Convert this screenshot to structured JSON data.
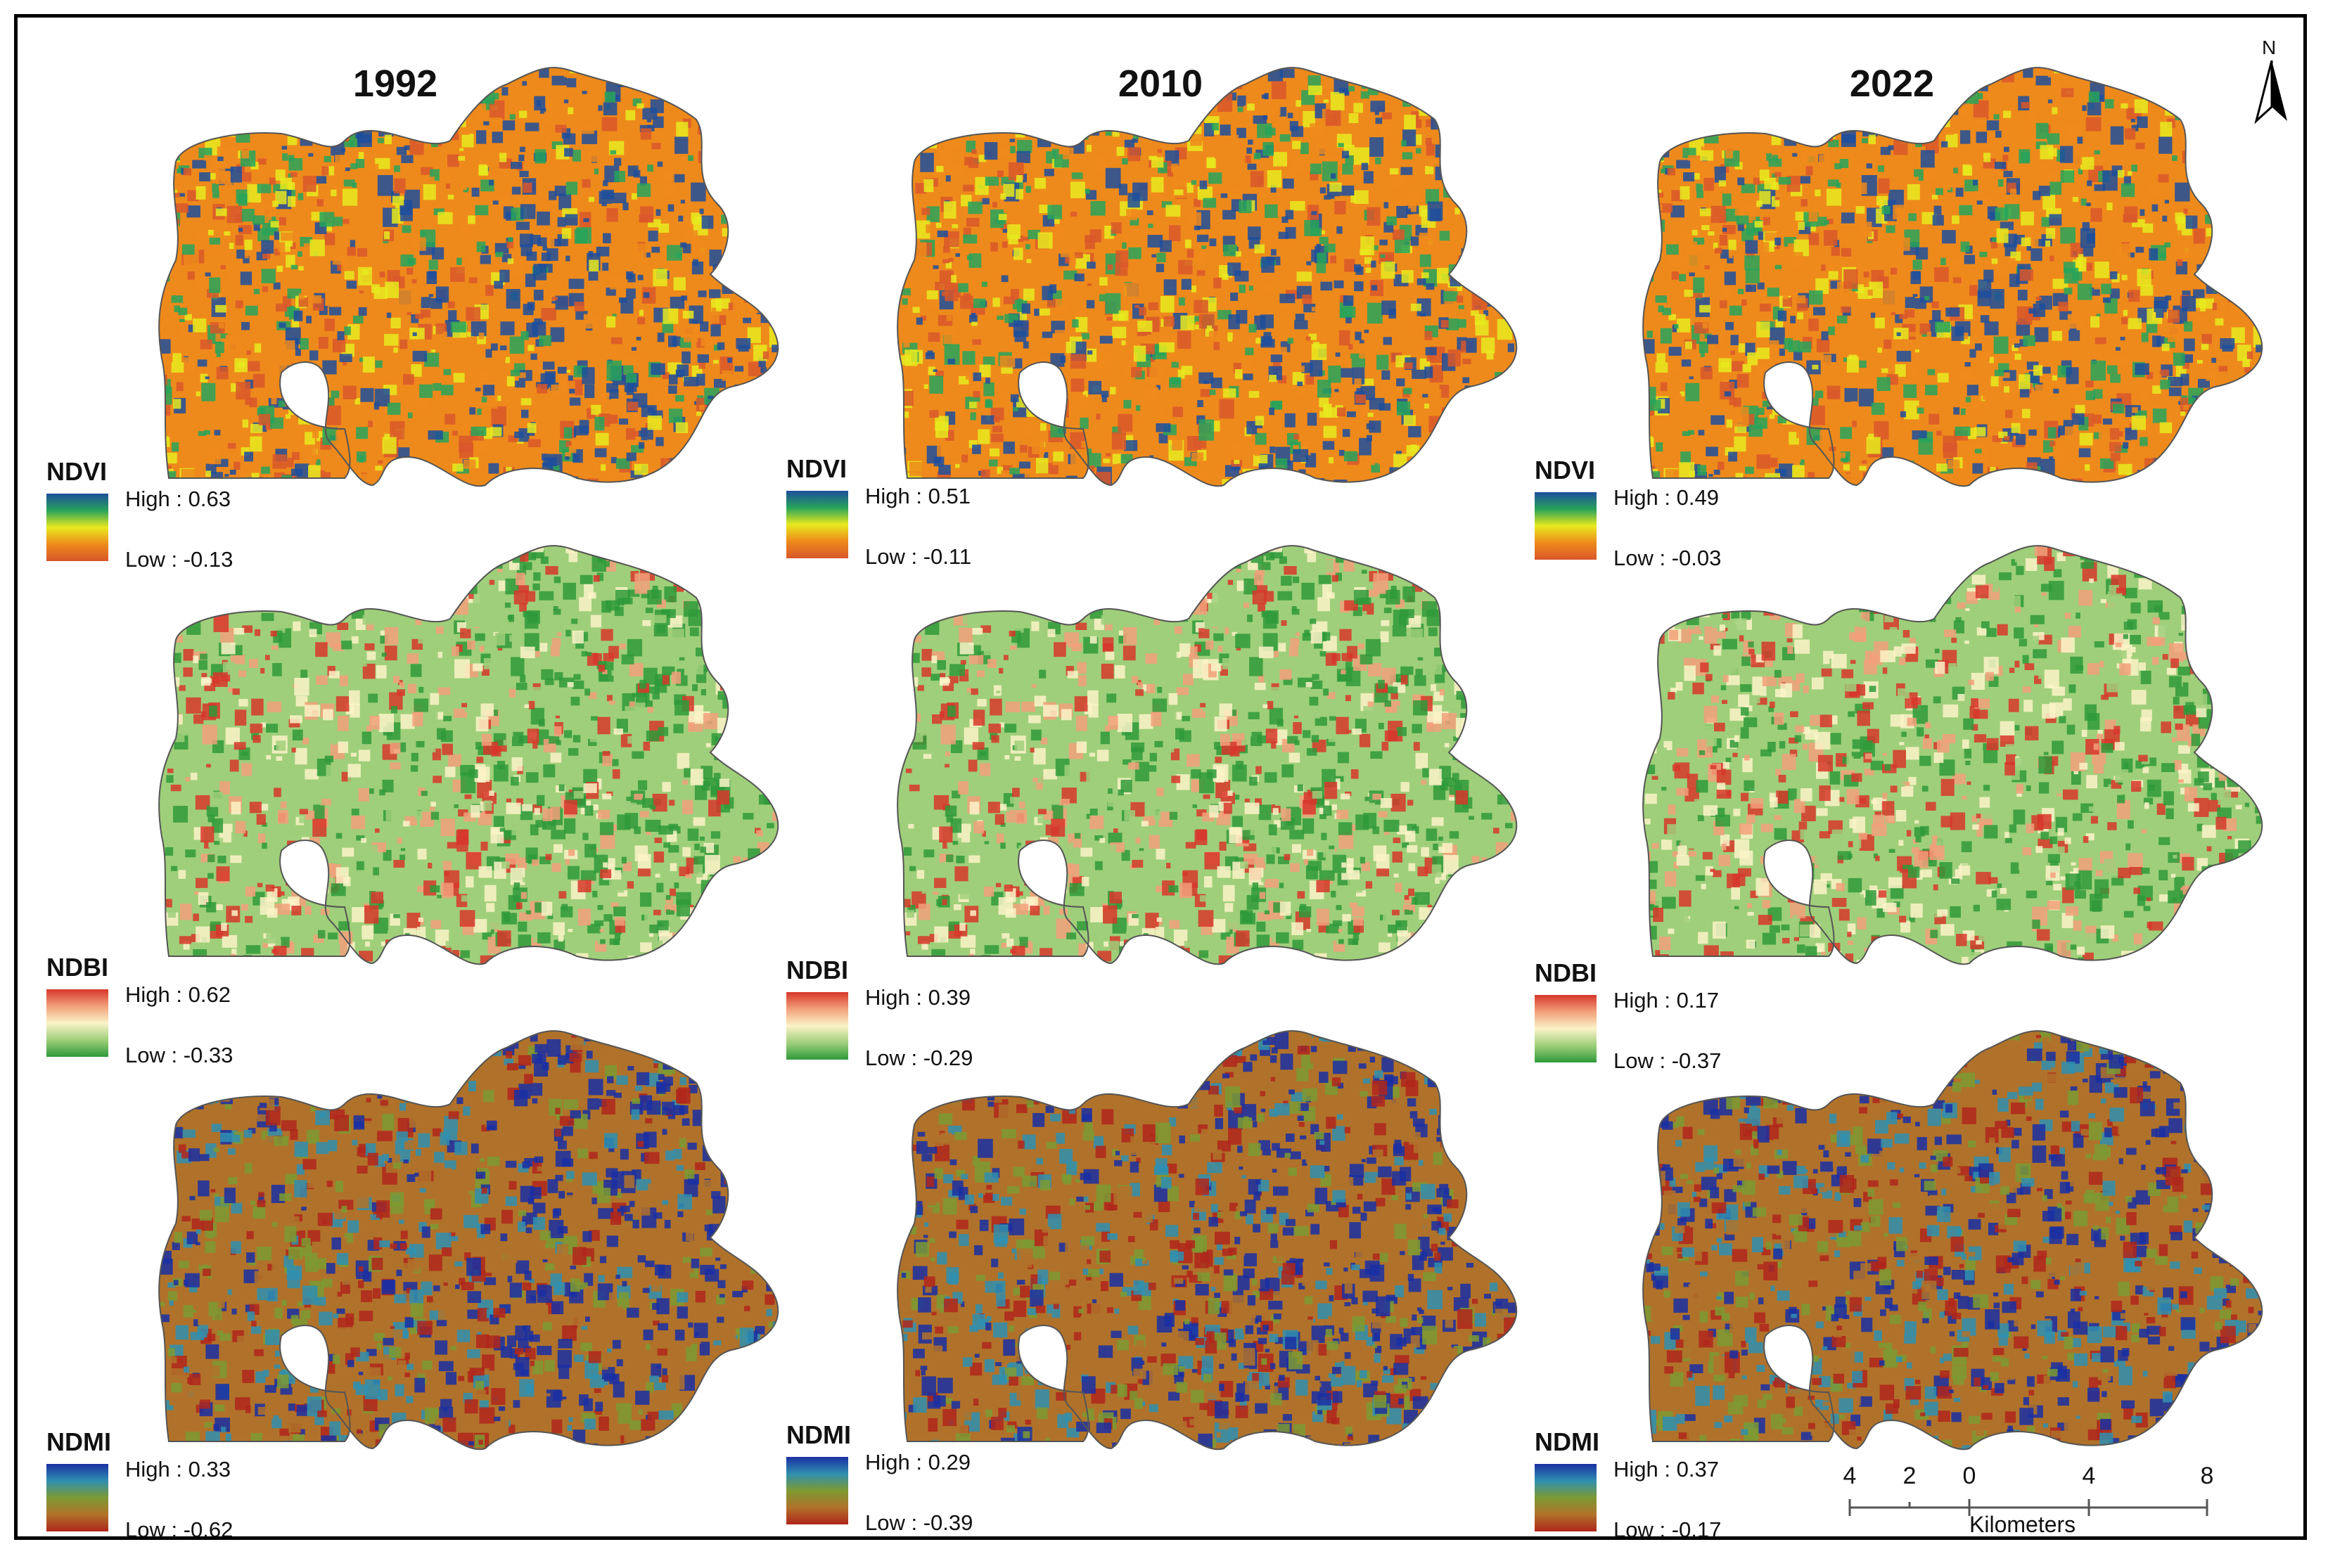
{
  "years": [
    "1992",
    "2010",
    "2022"
  ],
  "north_label": "N",
  "indices": [
    {
      "name": "NDVI",
      "colors": [
        "#1d4e9c",
        "#27a35a",
        "#e8ea1e",
        "#ee8a1b",
        "#d9572a"
      ],
      "panels": [
        {
          "year": "1992",
          "high_label": "High : 0.63",
          "low_label": "Low : -0.13",
          "high": 0.63,
          "low": -0.13
        },
        {
          "year": "2010",
          "high_label": "High : 0.51",
          "low_label": "Low : -0.11",
          "high": 0.51,
          "low": -0.11
        },
        {
          "year": "2022",
          "high_label": "High : 0.49",
          "low_label": "Low : -0.03",
          "high": 0.49,
          "low": -0.03
        }
      ]
    },
    {
      "name": "NDBI",
      "colors": [
        "#d7372a",
        "#f2a07a",
        "#fbf3c8",
        "#9fcf7a",
        "#2f9a3a"
      ],
      "panels": [
        {
          "year": "1992",
          "high_label": "High : 0.62",
          "low_label": "Low : -0.33",
          "high": 0.62,
          "low": -0.33
        },
        {
          "year": "2010",
          "high_label": "High : 0.39",
          "low_label": "Low : -0.29",
          "high": 0.39,
          "low": -0.29
        },
        {
          "year": "2022",
          "high_label": "High : 0.17",
          "low_label": "Low : -0.37",
          "high": 0.17,
          "low": -0.37
        }
      ]
    },
    {
      "name": "NDMI",
      "colors": [
        "#1a2fa3",
        "#2f8fb0",
        "#7d9a33",
        "#b0722a",
        "#b0261b"
      ],
      "panels": [
        {
          "year": "1992",
          "high_label": "High : 0.33",
          "low_label": "Low : -0.62",
          "high": 0.33,
          "low": -0.62
        },
        {
          "year": "2010",
          "high_label": "High : 0.29",
          "low_label": "Low : -0.39",
          "high": 0.29,
          "low": -0.39
        },
        {
          "year": "2022",
          "high_label": "High : 0.37",
          "low_label": "Low : -0.17",
          "high": 0.37,
          "low": -0.17
        }
      ]
    }
  ],
  "scale_bar": {
    "ticks": [
      "4",
      "2",
      "0",
      "4",
      "8"
    ],
    "unit": "Kilometers"
  }
}
